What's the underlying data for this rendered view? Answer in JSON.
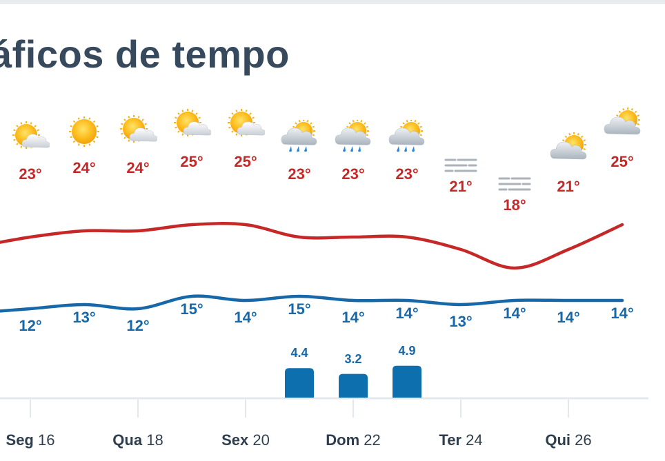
{
  "page": {
    "title": "áficos de tempo"
  },
  "colors": {
    "max_line": "#c62828",
    "min_line": "#1668a8",
    "precip_bar": "#0d6fae",
    "title": "#37495c"
  },
  "chart_data": {
    "type": "line",
    "series": [
      {
        "values": [
          23,
          24,
          24,
          25,
          25,
          23,
          23,
          23,
          21,
          18,
          21,
          25
        ]
      },
      {
        "values": [
          12,
          13,
          12,
          15,
          14,
          15,
          14,
          14,
          13,
          14,
          14,
          14
        ]
      }
    ],
    "precipitation": [
      null,
      null,
      null,
      null,
      null,
      4.4,
      3.2,
      4.9,
      null,
      null,
      null,
      null
    ],
    "icons": [
      "partly-sunny-icon",
      "sun-icon",
      "partly-sunny-icon",
      "partly-sunny-icon",
      "partly-sunny-icon",
      "rain-sun-icon",
      "rain-sun-icon",
      "rain-sun-icon",
      "fog-icon",
      "fog-icon",
      "cloudy-sun-icon",
      "cloudy-sun-icon"
    ]
  },
  "temps": {
    "max": [
      "23°",
      "24°",
      "24°",
      "25°",
      "25°",
      "23°",
      "23°",
      "23°",
      "21°",
      "18°",
      "21°",
      "25°"
    ],
    "min": [
      "12°",
      "13°",
      "12°",
      "15°",
      "14°",
      "15°",
      "14°",
      "14°",
      "13°",
      "14°",
      "14°",
      "14°"
    ]
  },
  "precip_labels": [
    "4.4",
    "3.2",
    "4.9"
  ],
  "days": [
    {
      "name": "Seg",
      "num": "16"
    },
    {
      "name": "Qua",
      "num": "18"
    },
    {
      "name": "Sex",
      "num": "20"
    },
    {
      "name": "Dom",
      "num": "22"
    },
    {
      "name": "Ter",
      "num": "24"
    },
    {
      "name": "Qui",
      "num": "26"
    }
  ]
}
